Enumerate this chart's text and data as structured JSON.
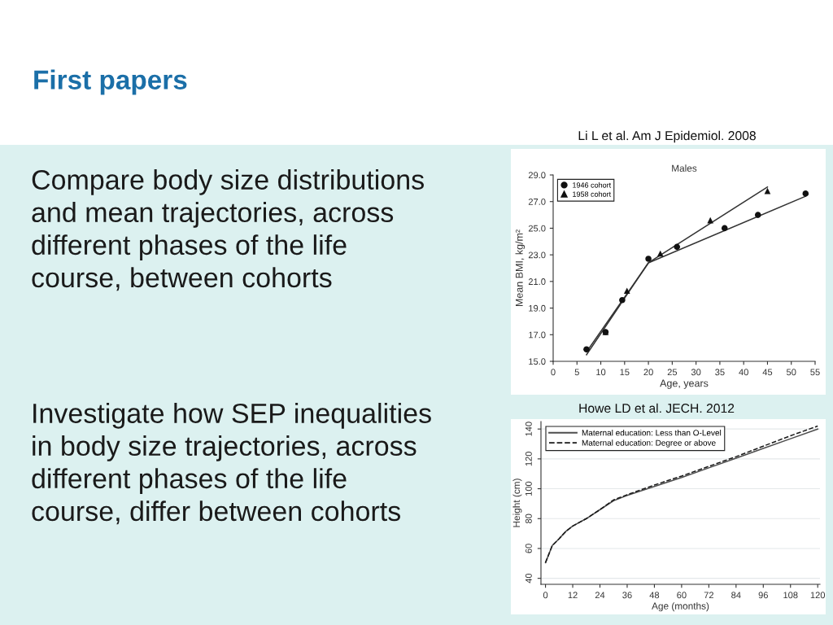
{
  "chart_data": [
    {
      "type": "other",
      "title": "First papers",
      "annotations": [
        "Compare body size distributions\nand mean trajectories, across\ndifferent phases of the life\ncourse, between cohorts",
        "Investigate how SEP inequalities\nin body size trajectories, across\ndifferent phases of the life\ncourse, differ between cohorts"
      ]
    },
    {
      "type": "scatter",
      "title": "Males",
      "xlabel": "Age, years",
      "ylabel": "Mean BMI, kg/m²",
      "annotations": [
        "Li L et al. Am J Epidemiol. 2008"
      ],
      "xlim": [
        0,
        55
      ],
      "xticks": [
        0,
        5,
        10,
        15,
        20,
        25,
        30,
        35,
        40,
        45,
        50,
        55
      ],
      "ylim": [
        15,
        29
      ],
      "yticks": [
        {
          "value": 15,
          "label": "15.0"
        },
        {
          "value": 17,
          "label": "17.0"
        },
        {
          "value": 19,
          "label": "19.0"
        },
        {
          "value": 21,
          "label": "21.0"
        },
        {
          "value": 23,
          "label": "23.0"
        },
        {
          "value": 25,
          "label": "25.0"
        },
        {
          "value": 27,
          "label": "27.0"
        },
        {
          "value": 29,
          "label": "29.0"
        }
      ],
      "legend": "top left",
      "series": [
        {
          "type": "line",
          "color": "#333333",
          "marker": "none",
          "line_style": "solid",
          "x": [
            7,
            20,
            53
          ],
          "values": [
            15.7,
            22.4,
            27.4
          ]
        },
        {
          "type": "line",
          "color": "#333333",
          "marker": "none",
          "line_style": "solid",
          "x": [
            7,
            20,
            45
          ],
          "values": [
            15.5,
            22.4,
            28.1
          ]
        },
        {
          "name": "1946 cohort",
          "type": "scatter",
          "color": "#111111",
          "marker": "circle",
          "x": [
            7,
            11,
            14.5,
            20,
            26,
            36,
            43,
            53
          ],
          "values": [
            15.9,
            17.2,
            19.6,
            22.7,
            23.6,
            25.0,
            26.0,
            27.6
          ]
        },
        {
          "name": "1958 cohort",
          "type": "scatter",
          "color": "#111111",
          "marker": "triangle",
          "x": [
            11,
            15.5,
            22.5,
            33,
            45
          ],
          "values": [
            17.2,
            20.3,
            23.1,
            25.6,
            27.8
          ]
        }
      ]
    },
    {
      "type": "line",
      "xlabel": "Age (months)",
      "ylabel": "Height (cm)",
      "annotations": [
        "Howe LD et al. JECH. 2012"
      ],
      "xlim": [
        -2,
        121
      ],
      "xticks": [
        0,
        12,
        24,
        36,
        48,
        60,
        72,
        84,
        96,
        108,
        120
      ],
      "ylim": [
        36,
        145
      ],
      "yticks": [
        40,
        60,
        80,
        100,
        120,
        140
      ],
      "grid": "y",
      "legend": "top left",
      "x": [
        0,
        3,
        6,
        9,
        12,
        18,
        24,
        30,
        36,
        48,
        60,
        72,
        84,
        96,
        108,
        120
      ],
      "series": [
        {
          "name": "Maternal education: Less than O-Level",
          "color": "#4d4d4d",
          "line_style": "solid",
          "values": [
            50.5,
            62,
            66.5,
            71.5,
            75,
            80,
            86,
            92,
            95.5,
            101.5,
            107.5,
            114,
            120.5,
            127,
            133.5,
            140
          ]
        },
        {
          "name": "Maternal education: Degree or above",
          "color": "#1a1a1a",
          "line_style": "dashed",
          "values": [
            50.5,
            62,
            66.5,
            71.5,
            75,
            80,
            86,
            92.5,
            96,
            102.5,
            108.5,
            115,
            121.5,
            128.5,
            135.5,
            142
          ]
        }
      ]
    }
  ]
}
